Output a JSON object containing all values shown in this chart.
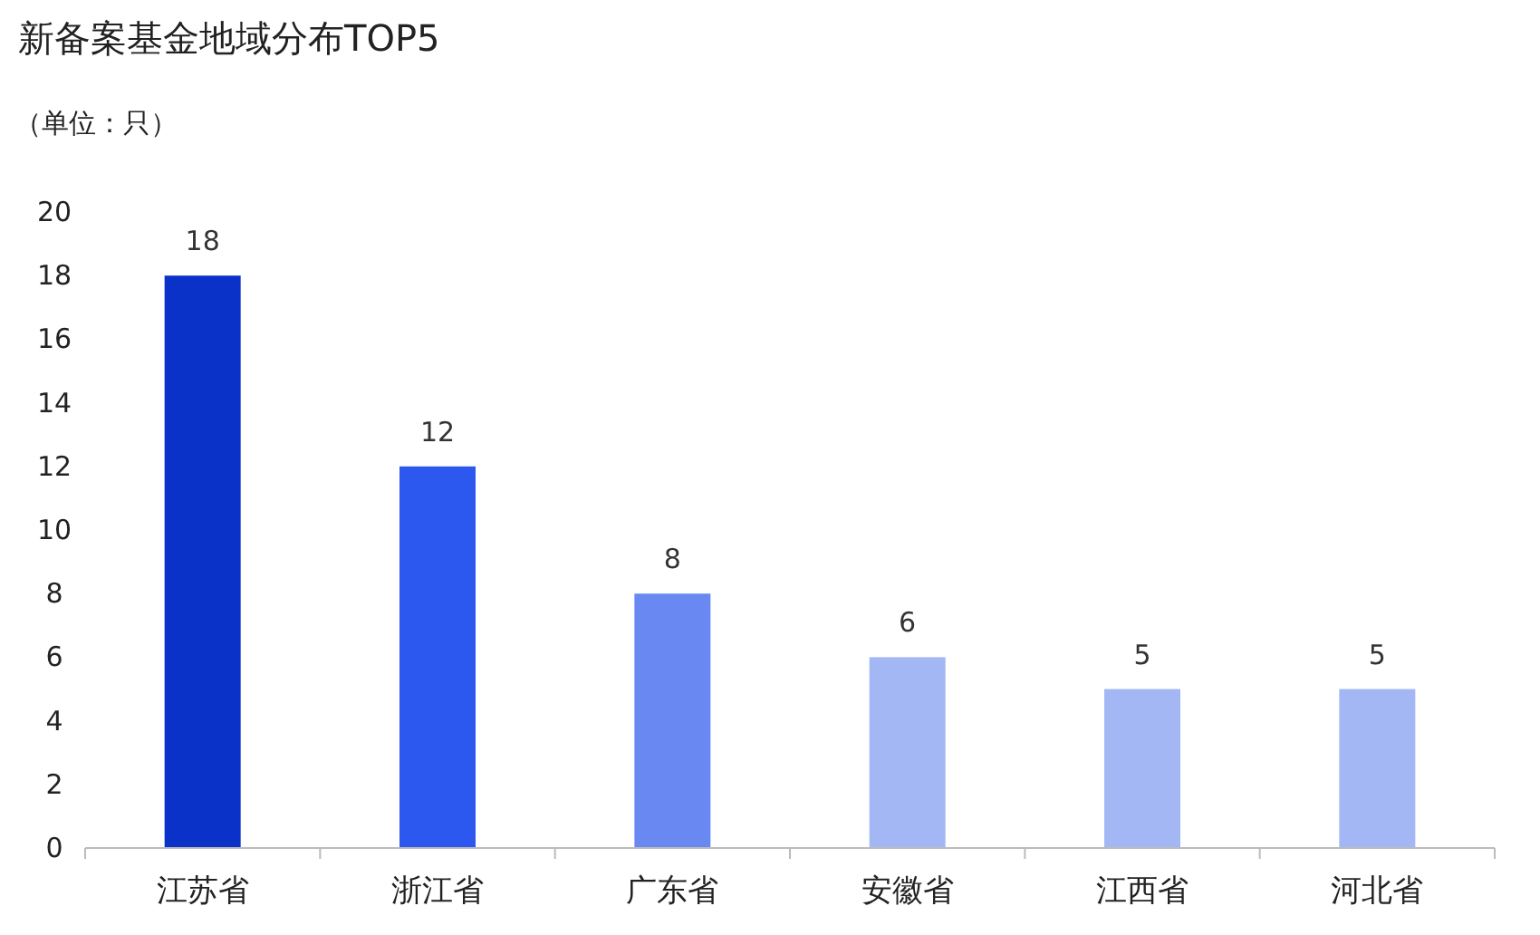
{
  "chart_data": {
    "type": "bar",
    "title": "新备案基金地域分布TOP5",
    "ylabel": "（单位：只）",
    "categories": [
      "江苏省",
      "浙江省",
      "广东省",
      "安徽省",
      "江西省",
      "河北省"
    ],
    "values": [
      18,
      12,
      8,
      6,
      5,
      5
    ],
    "colors": [
      "#0a32c8",
      "#2c58f0",
      "#6a88f2",
      "#a4b7f5",
      "#a4b7f5",
      "#a4b7f5"
    ],
    "ylim": [
      0,
      20
    ],
    "yticks": [
      0,
      2,
      4,
      6,
      8,
      10,
      12,
      14,
      16,
      18,
      20
    ],
    "grid": false,
    "data_labels": true
  }
}
